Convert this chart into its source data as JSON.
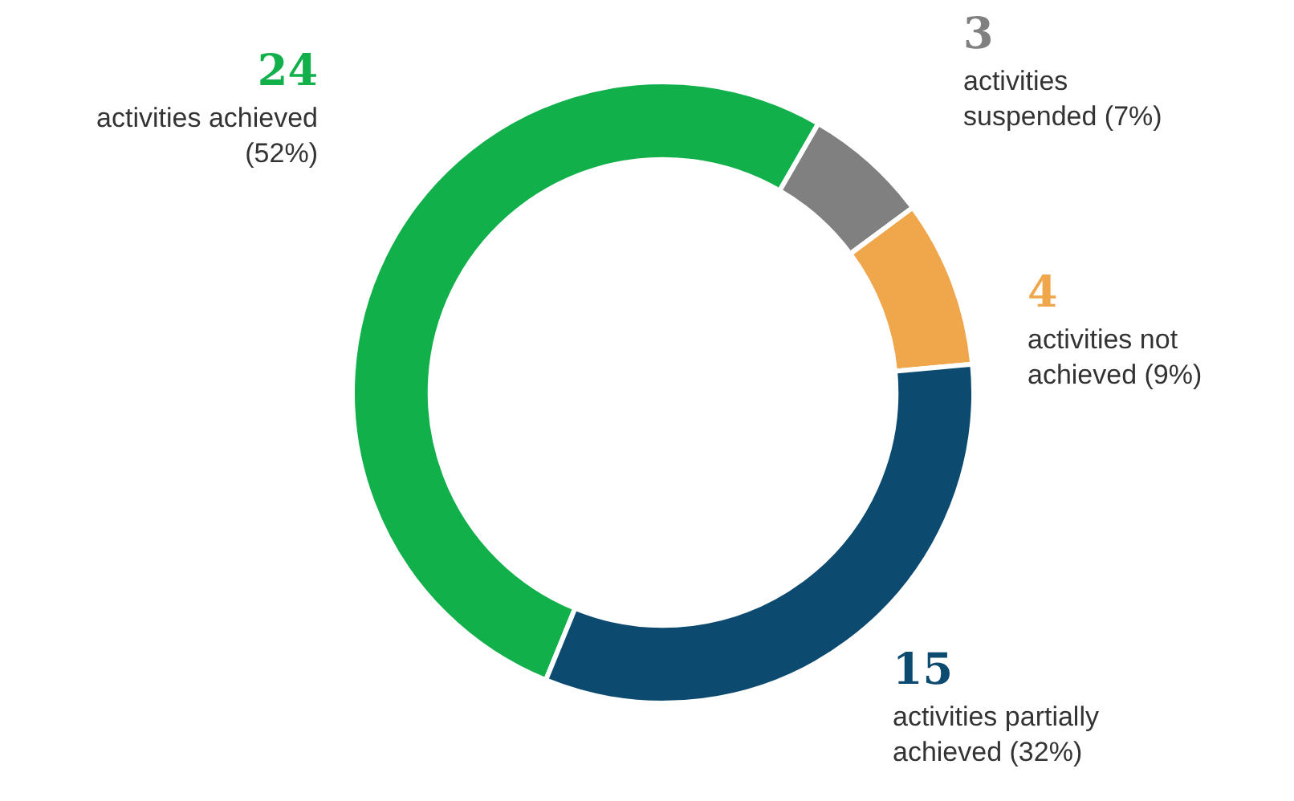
{
  "chart_data": {
    "type": "donut",
    "categories": [
      "activities achieved (52%)",
      "activities suspended (7%)",
      "activities not achieved (9%)",
      "activities partially achieved (32%)"
    ],
    "values": [
      24,
      3,
      4,
      15
    ],
    "colors": [
      "#12b04a",
      "#808080",
      "#f0a64a",
      "#0c4a70"
    ],
    "data_labels": true,
    "legend": false
  }
}
